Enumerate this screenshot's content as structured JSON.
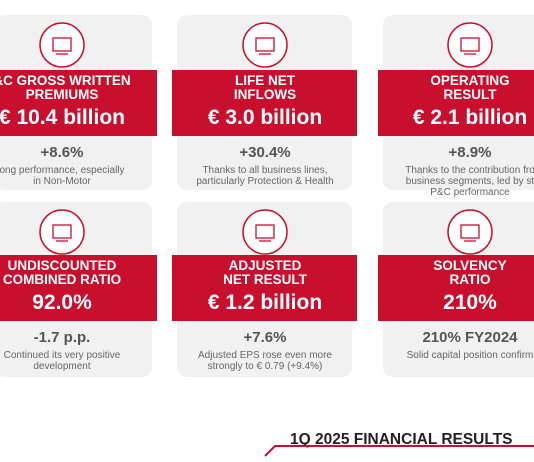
{
  "cards": [
    {
      "title": [
        "&C GROSS WRITTEN",
        "PREMIUMS"
      ],
      "value": "€ 10.4 billion",
      "change": "+8.6%",
      "note": [
        "ong performance, especially",
        "in Non-Motor"
      ]
    },
    {
      "title": [
        "LIFE NET",
        "INFLOWS"
      ],
      "value": "€ 3.0 billion",
      "change": "+30.4%",
      "note": [
        "Thanks to all business lines,",
        "particularly Protection & Health"
      ]
    },
    {
      "title": [
        "OPERATING",
        "RESULT"
      ],
      "value": "€ 2.1 billion",
      "change": "+8.9%",
      "note": [
        "Thanks to the contribution fro",
        "business segments, led by st",
        "P&C performance"
      ]
    },
    {
      "title": [
        "UNDISCOUNTED",
        "COMBINED RATIO"
      ],
      "value": "92.0%",
      "change": "-1.7 p.p.",
      "note": [
        "Continued its very positive",
        "development"
      ]
    },
    {
      "title": [
        "ADJUSTED",
        "NET RESULT"
      ],
      "value": "€ 1.2 billion",
      "change": "+7.6%",
      "note": [
        "Adjusted EPS rose even more",
        "strongly to € 0.79 (+9.4%)"
      ]
    },
    {
      "title": [
        "SOLVENCY",
        "RATIO"
      ],
      "value": "210%",
      "change": "210% FY2024",
      "note": [
        "Solid capital position confirm"
      ]
    }
  ],
  "footer": "1Q 2025 FINANCIAL RESULTS"
}
